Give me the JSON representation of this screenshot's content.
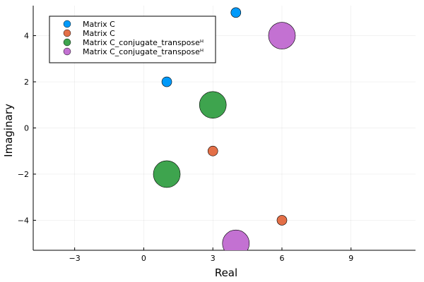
{
  "chart_data": {
    "type": "scatter",
    "title": "",
    "xlabel": "Real",
    "ylabel": "Imaginary",
    "xlim": [
      -4.8,
      11.8
    ],
    "ylim": [
      -5.3,
      5.3
    ],
    "xticks": [
      -3,
      0,
      3,
      6,
      9
    ],
    "xtick_labels": [
      "−3",
      "0",
      "3",
      "6",
      "9"
    ],
    "yticks": [
      -4,
      -2,
      0,
      2,
      4
    ],
    "ytick_labels": [
      "−4",
      "−2",
      "0",
      "2",
      "4"
    ],
    "grid": true,
    "legend_position": "top-left",
    "series": [
      {
        "name": "Matrix C",
        "color": "#009AFA",
        "marker_size": "small",
        "points": [
          {
            "x": 1,
            "y": 2
          },
          {
            "x": 4,
            "y": 5
          }
        ]
      },
      {
        "name": "Matrix C",
        "color": "#E36F47",
        "marker_size": "small",
        "points": [
          {
            "x": 3,
            "y": -1
          },
          {
            "x": 6,
            "y": -4
          }
        ]
      },
      {
        "name": "Matrix C_conjugate_transposeᴴ",
        "color": "#3EA44E",
        "marker_size": "large",
        "points": [
          {
            "x": 1,
            "y": -2
          },
          {
            "x": 3,
            "y": 1
          }
        ]
      },
      {
        "name": "Matrix C_conjugate_transposeᴴ",
        "color": "#C371D2",
        "marker_size": "large",
        "points": [
          {
            "x": 4,
            "y": -5
          },
          {
            "x": 6,
            "y": 4
          }
        ]
      }
    ]
  }
}
